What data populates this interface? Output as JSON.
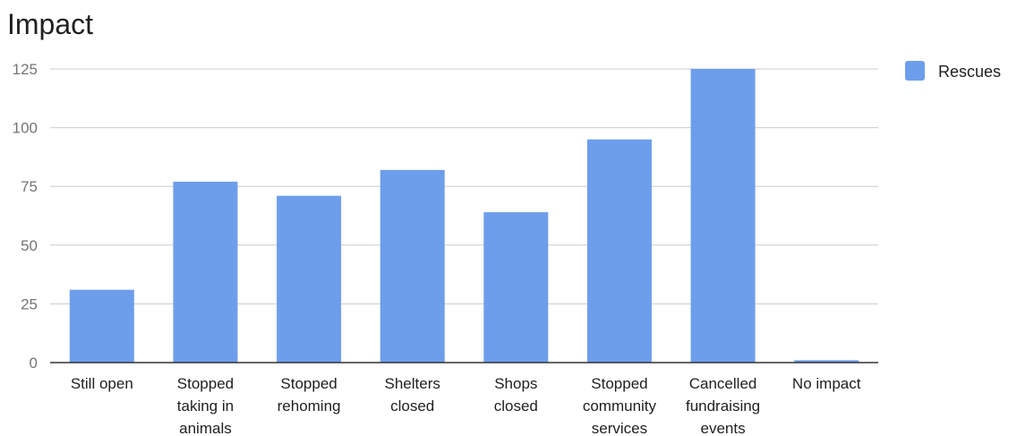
{
  "chart_data": {
    "type": "bar",
    "title": "Impact",
    "categories": [
      [
        "Still open"
      ],
      [
        "Stopped",
        "taking in",
        "animals"
      ],
      [
        "Stopped",
        "rehoming"
      ],
      [
        "Shelters",
        "closed"
      ],
      [
        "Shops",
        "closed"
      ],
      [
        "Stopped",
        "community",
        "services"
      ],
      [
        "Cancelled",
        "fundraising",
        "events"
      ],
      [
        "No impact"
      ]
    ],
    "series": [
      {
        "name": "Rescues",
        "color": "#6d9eeb",
        "values": [
          31,
          77,
          71,
          82,
          64,
          95,
          125,
          1
        ]
      }
    ],
    "yticks": [
      0,
      25,
      50,
      75,
      100,
      125
    ],
    "ylim": [
      0,
      125
    ],
    "grid": true,
    "legend": "right"
  }
}
